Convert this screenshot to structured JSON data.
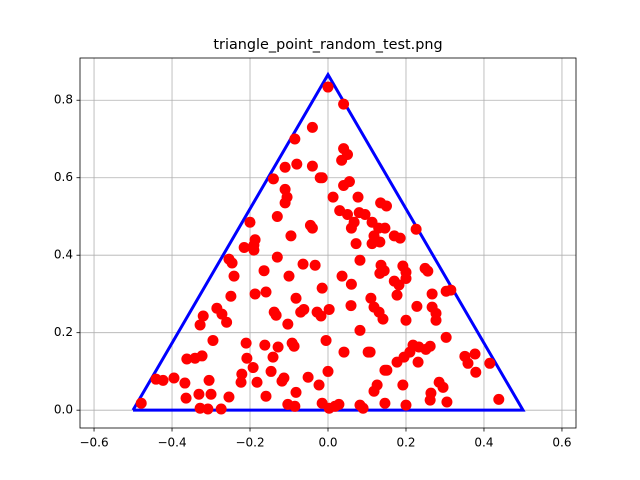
{
  "chart_data": {
    "type": "scatter",
    "title": "triangle_point_random_test.png",
    "xlim": [
      -0.636,
      0.636
    ],
    "ylim": [
      -0.046,
      0.909
    ],
    "grid": true,
    "xticks": [
      {
        "value": -0.6,
        "label": "−0.6"
      },
      {
        "value": -0.4,
        "label": "−0.4"
      },
      {
        "value": -0.2,
        "label": "−0.2"
      },
      {
        "value": 0,
        "label": "0.0"
      },
      0.2,
      0.4,
      0.6
    ],
    "yticks": [
      {
        "value": 0,
        "label": "0.0"
      },
      0.2,
      0.4,
      0.6,
      0.8
    ],
    "series": [
      {
        "type": "line",
        "color": "#0000ff",
        "x": [
          -0.5,
          0.5,
          0,
          -0.5
        ],
        "values": [
          0,
          0,
          0.866,
          0
        ]
      },
      {
        "type": "scatter",
        "color": "#ff0000",
        "x": [
          0.0,
          0.04,
          -0.04,
          -0.085,
          0.04,
          0.05,
          0.035,
          -0.08,
          -0.11,
          -0.04,
          -0.02,
          -0.015,
          0.055,
          0.04,
          -0.14,
          -0.11,
          -0.105,
          -0.11,
          0.013,
          0.077,
          -0.13,
          0.03,
          0.05,
          0.08,
          0.095,
          0.135,
          0.15,
          -0.045,
          -0.04,
          0.067,
          0.06,
          0.113,
          0.13,
          0.146,
          -0.2,
          -0.095,
          0.118,
          0.133,
          0.17,
          0.185,
          0.226,
          -0.187,
          -0.19,
          -0.215,
          -0.19,
          0.072,
          0.113,
          -0.254,
          -0.246,
          -0.13,
          -0.164,
          -0.241,
          -0.064,
          -0.033,
          -0.1,
          0.036,
          0.082,
          0.136,
          0.144,
          0.133,
          0.192,
          0.2,
          0.249,
          0.256,
          0.17,
          0.182,
          0.2,
          -0.159,
          -0.187,
          -0.249,
          -0.082,
          -0.015,
          0.06,
          0.059,
          0.11,
          0.177,
          0.267,
          0.303,
          0.315,
          -0.285,
          -0.272,
          -0.32,
          -0.328,
          -0.26,
          -0.138,
          -0.133,
          -0.062,
          -0.07,
          -0.028,
          -0.018,
          0.003,
          0.118,
          0.131,
          0.141,
          0.228,
          0.267,
          0.277,
          0.277,
          0.2,
          -0.103,
          0.082,
          0.303,
          -0.295,
          -0.21,
          -0.162,
          -0.128,
          -0.092,
          -0.087,
          -0.005,
          0.218,
          0.233,
          0.251,
          0.262,
          0.195,
          0.21,
          -0.323,
          -0.341,
          -0.362,
          -0.208,
          -0.141,
          -0.192,
          0.041,
          0.103,
          0.108,
          0.177,
          0.151,
          0.146,
          0.231,
          0.351,
          0.377,
          0.359,
          0.415,
          0.379,
          -0.395,
          -0.423,
          -0.441,
          -0.367,
          -0.305,
          -0.221,
          -0.223,
          -0.182,
          -0.146,
          -0.113,
          -0.118,
          0.0,
          -0.051,
          0.126,
          0.118,
          0.192,
          0.285,
          0.295,
          0.264,
          -0.364,
          -0.331,
          -0.3,
          -0.254,
          -0.159,
          -0.082,
          -0.023,
          -0.479,
          -0.328,
          -0.308,
          -0.274,
          -0.103,
          -0.085,
          0.003,
          0.018,
          -0.015,
          0.028,
          0.09,
          0.146,
          0.2,
          0.262,
          0.305,
          0.438,
          0.082
        ],
        "values": [
          0.834,
          0.79,
          0.73,
          0.7,
          0.675,
          0.66,
          0.645,
          0.635,
          0.627,
          0.63,
          0.6,
          0.6,
          0.59,
          0.58,
          0.597,
          0.57,
          0.55,
          0.535,
          0.55,
          0.55,
          0.5,
          0.515,
          0.505,
          0.51,
          0.505,
          0.535,
          0.527,
          0.477,
          0.47,
          0.485,
          0.47,
          0.485,
          0.47,
          0.47,
          0.485,
          0.45,
          0.45,
          0.434,
          0.45,
          0.444,
          0.467,
          0.44,
          0.426,
          0.42,
          0.413,
          0.43,
          0.43,
          0.39,
          0.38,
          0.395,
          0.36,
          0.346,
          0.377,
          0.374,
          0.346,
          0.346,
          0.387,
          0.374,
          0.36,
          0.353,
          0.372,
          0.356,
          0.366,
          0.359,
          0.333,
          0.323,
          0.34,
          0.305,
          0.3,
          0.294,
          0.289,
          0.315,
          0.325,
          0.27,
          0.289,
          0.297,
          0.3,
          0.307,
          0.31,
          0.263,
          0.248,
          0.243,
          0.22,
          0.227,
          0.253,
          0.245,
          0.26,
          0.253,
          0.253,
          0.243,
          0.26,
          0.266,
          0.253,
          0.235,
          0.268,
          0.266,
          0.25,
          0.232,
          0.232,
          0.222,
          0.206,
          0.188,
          0.18,
          0.173,
          0.168,
          0.163,
          0.173,
          0.165,
          0.18,
          0.168,
          0.163,
          0.157,
          0.165,
          0.137,
          0.15,
          0.14,
          0.134,
          0.132,
          0.134,
          0.137,
          0.11,
          0.15,
          0.15,
          0.15,
          0.124,
          0.103,
          0.103,
          0.124,
          0.139,
          0.145,
          0.121,
          0.121,
          0.098,
          0.083,
          0.077,
          0.08,
          0.07,
          0.077,
          0.093,
          0.072,
          0.072,
          0.1,
          0.083,
          0.075,
          0.1,
          0.085,
          0.065,
          0.049,
          0.065,
          0.072,
          0.059,
          0.044,
          0.031,
          0.041,
          0.041,
          0.034,
          0.036,
          0.046,
          0.065,
          0.018,
          0.005,
          0.003,
          0.003,
          0.015,
          0.01,
          0.005,
          0.01,
          0.018,
          0.015,
          0.005,
          0.018,
          0.013,
          0.026,
          0.021,
          0.028,
          0.013
        ]
      }
    ]
  }
}
